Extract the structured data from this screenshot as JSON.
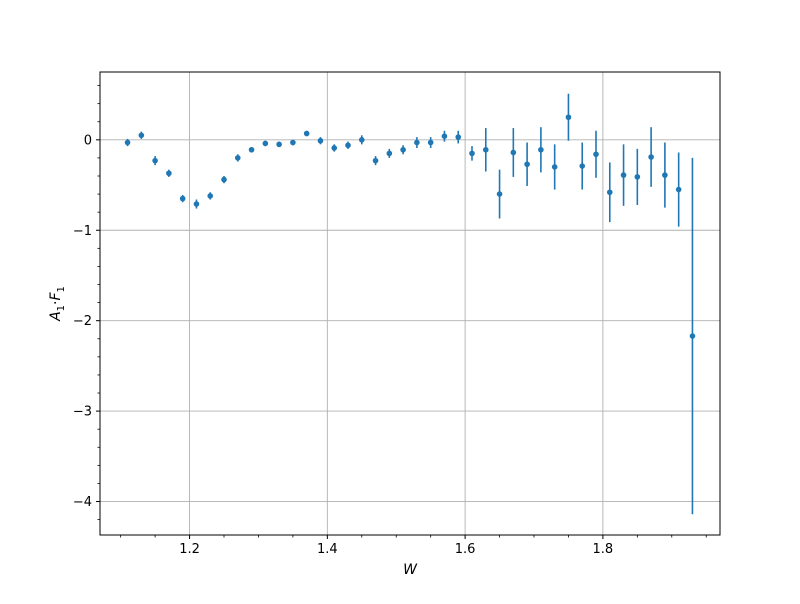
{
  "chart_data": {
    "type": "scatter",
    "title": "",
    "xlabel": "W",
    "ylabel": "A1·F1",
    "ylabel_main_1": "A",
    "ylabel_sub_1": "1",
    "ylabel_dot": "·",
    "ylabel_main_2": "F",
    "ylabel_sub_2": "1",
    "xlim": [
      1.07,
      1.97
    ],
    "ylim": [
      -4.37,
      0.75
    ],
    "grid": true,
    "marker_color": "#1f77b4",
    "x_ticks": [
      {
        "value": 1.2,
        "label": "1.2"
      },
      {
        "value": 1.4,
        "label": "1.4"
      },
      {
        "value": 1.6,
        "label": "1.6"
      },
      {
        "value": 1.8,
        "label": "1.8"
      }
    ],
    "y_ticks": [
      {
        "value": 0,
        "label": "0"
      },
      {
        "value": -1,
        "label": "−1"
      },
      {
        "value": -2,
        "label": "−2"
      },
      {
        "value": -3,
        "label": "−3"
      },
      {
        "value": -4,
        "label": "−4"
      }
    ],
    "series": [
      {
        "points": [
          {
            "x": 1.11,
            "y": -0.03,
            "err": 0.04
          },
          {
            "x": 1.13,
            "y": 0.05,
            "err": 0.04
          },
          {
            "x": 1.15,
            "y": -0.23,
            "err": 0.05
          },
          {
            "x": 1.17,
            "y": -0.37,
            "err": 0.04
          },
          {
            "x": 1.19,
            "y": -0.65,
            "err": 0.04
          },
          {
            "x": 1.21,
            "y": -0.71,
            "err": 0.05
          },
          {
            "x": 1.23,
            "y": -0.62,
            "err": 0.04
          },
          {
            "x": 1.25,
            "y": -0.44,
            "err": 0.04
          },
          {
            "x": 1.27,
            "y": -0.2,
            "err": 0.04
          },
          {
            "x": 1.29,
            "y": -0.11,
            "err": 0.03
          },
          {
            "x": 1.31,
            "y": -0.04,
            "err": 0.03
          },
          {
            "x": 1.33,
            "y": -0.05,
            "err": 0.03
          },
          {
            "x": 1.35,
            "y": -0.03,
            "err": 0.03
          },
          {
            "x": 1.37,
            "y": 0.07,
            "err": 0.03
          },
          {
            "x": 1.39,
            "y": -0.01,
            "err": 0.04
          },
          {
            "x": 1.41,
            "y": -0.09,
            "err": 0.04
          },
          {
            "x": 1.43,
            "y": -0.06,
            "err": 0.04
          },
          {
            "x": 1.45,
            "y": -0.0,
            "err": 0.05
          },
          {
            "x": 1.47,
            "y": -0.23,
            "err": 0.05
          },
          {
            "x": 1.49,
            "y": -0.15,
            "err": 0.05
          },
          {
            "x": 1.51,
            "y": -0.11,
            "err": 0.05
          },
          {
            "x": 1.53,
            "y": -0.03,
            "err": 0.06
          },
          {
            "x": 1.55,
            "y": -0.03,
            "err": 0.06
          },
          {
            "x": 1.57,
            "y": 0.04,
            "err": 0.06
          },
          {
            "x": 1.59,
            "y": 0.03,
            "err": 0.07
          },
          {
            "x": 1.61,
            "y": -0.15,
            "err": 0.08
          },
          {
            "x": 1.63,
            "y": -0.11,
            "err": 0.24
          },
          {
            "x": 1.65,
            "y": -0.6,
            "err": 0.27
          },
          {
            "x": 1.67,
            "y": -0.14,
            "err": 0.27
          },
          {
            "x": 1.69,
            "y": -0.27,
            "err": 0.24
          },
          {
            "x": 1.71,
            "y": -0.11,
            "err": 0.25
          },
          {
            "x": 1.73,
            "y": -0.3,
            "err": 0.25
          },
          {
            "x": 1.75,
            "y": 0.25,
            "err": 0.26
          },
          {
            "x": 1.77,
            "y": -0.29,
            "err": 0.26
          },
          {
            "x": 1.79,
            "y": -0.16,
            "err": 0.26
          },
          {
            "x": 1.81,
            "y": -0.58,
            "err": 0.33
          },
          {
            "x": 1.83,
            "y": -0.39,
            "err": 0.34
          },
          {
            "x": 1.85,
            "y": -0.41,
            "err": 0.31
          },
          {
            "x": 1.87,
            "y": -0.19,
            "err": 0.33
          },
          {
            "x": 1.89,
            "y": -0.39,
            "err": 0.36
          },
          {
            "x": 1.91,
            "y": -0.55,
            "err": 0.41
          },
          {
            "x": 1.93,
            "y": -2.17,
            "err": 1.97
          }
        ]
      }
    ]
  }
}
